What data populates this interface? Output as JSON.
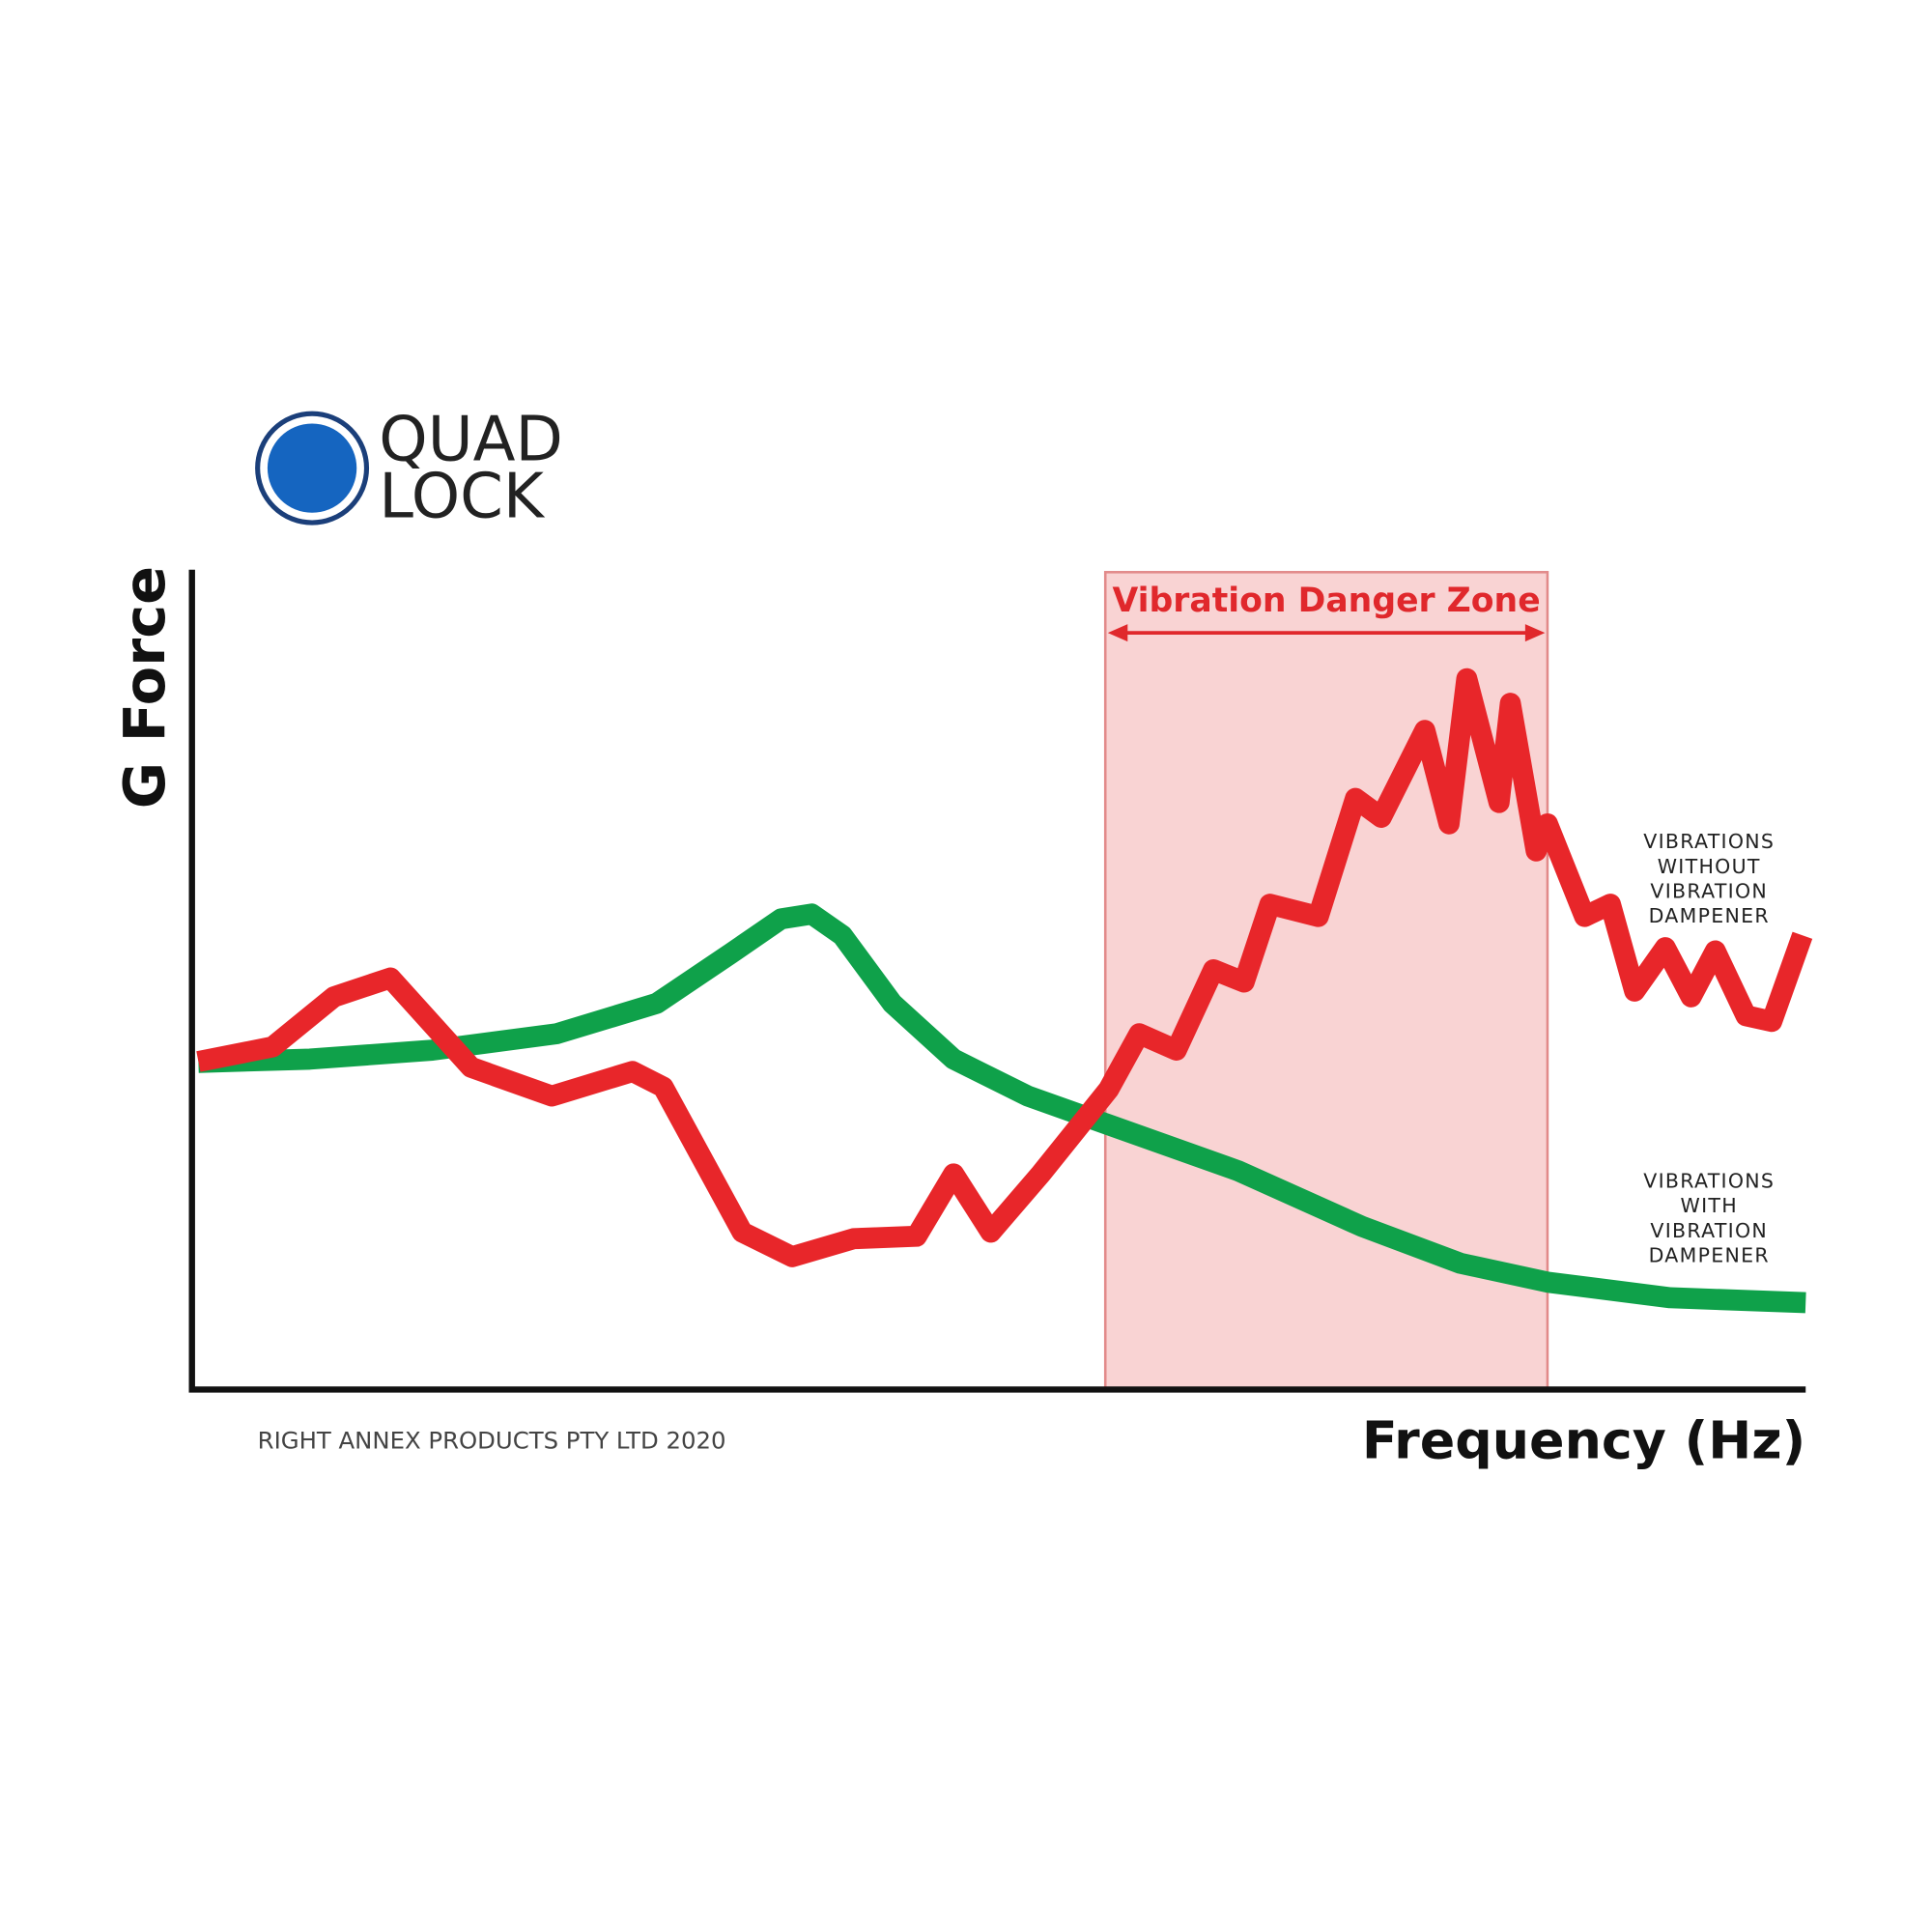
{
  "logo": [
    "QUAD",
    "LOCK"
  ],
  "chart_data": {
    "type": "line",
    "ylabel": "G Force",
    "xlabel": "Frequency (Hz)",
    "xlim": [
      0,
      100
    ],
    "ylim": [
      0,
      100
    ],
    "zone": {
      "label": "Vibration Danger Zone",
      "x": [
        56.6,
        84.0
      ],
      "color": "#f9d3d3"
    },
    "series": [
      {
        "name": "VIBRATIONS WITHOUT VIBRATION DAMPENER",
        "color": "#e8262a",
        "x": [
          0.4,
          5.0,
          8.8,
          12.3,
          17.3,
          22.3,
          27.3,
          29.2,
          34.1,
          37.2,
          41.0,
          44.9,
          47.2,
          49.5,
          52.6,
          56.8,
          58.7,
          61.0,
          63.3,
          65.2,
          66.8,
          69.8,
          72.1,
          73.7,
          76.4,
          77.9,
          79.0,
          81.0,
          81.7,
          83.3,
          84.0,
          86.3,
          87.9,
          89.4,
          91.3,
          92.9,
          94.4,
          96.3,
          97.9,
          99.8
        ],
        "values": [
          40.0,
          41.8,
          47.9,
          50.2,
          39.3,
          35.8,
          38.8,
          36.9,
          19.2,
          16.2,
          18.4,
          18.7,
          26.3,
          19.2,
          26.3,
          36.6,
          43.4,
          41.4,
          51.2,
          49.7,
          59.2,
          57.7,
          72.1,
          69.8,
          80.4,
          69.0,
          86.7,
          71.6,
          83.7,
          65.7,
          69.0,
          57.7,
          59.2,
          48.6,
          53.9,
          47.9,
          53.5,
          45.6,
          44.9,
          55.4
        ]
      },
      {
        "name": "VIBRATIONS WITH VIBRATION DAMPENER",
        "color": "#0fa14a",
        "x": [
          0.4,
          7.3,
          14.9,
          22.6,
          28.8,
          33.4,
          36.5,
          38.4,
          40.3,
          43.4,
          47.2,
          51.8,
          56.8,
          64.8,
          72.5,
          78.6,
          84.0,
          91.6,
          100
        ],
        "values": [
          39.9,
          40.3,
          41.4,
          43.4,
          47.1,
          53.2,
          57.4,
          58.0,
          55.4,
          47.1,
          40.3,
          35.8,
          32.3,
          26.7,
          19.9,
          15.4,
          13.1,
          11.2,
          10.6
        ]
      }
    ]
  },
  "footer": "RIGHT ANNEX PRODUCTS PTY LTD 2020"
}
